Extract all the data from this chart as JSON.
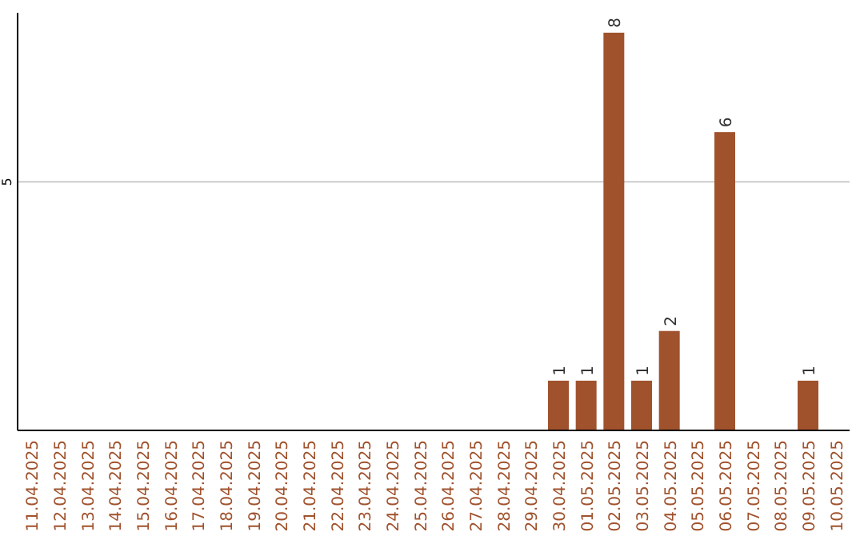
{
  "chart_data": {
    "type": "bar",
    "categories": [
      "11.04.2025",
      "12.04.2025",
      "13.04.2025",
      "14.04.2025",
      "15.04.2025",
      "16.04.2025",
      "17.04.2025",
      "18.04.2025",
      "19.04.2025",
      "20.04.2025",
      "21.04.2025",
      "22.04.2025",
      "23.04.2025",
      "24.04.2025",
      "25.04.2025",
      "26.04.2025",
      "27.04.2025",
      "28.04.2025",
      "29.04.2025",
      "30.04.2025",
      "01.05.2025",
      "02.05.2025",
      "03.05.2025",
      "04.05.2025",
      "05.05.2025",
      "06.05.2025",
      "07.05.2025",
      "08.05.2025",
      "09.05.2025",
      "10.05.2025"
    ],
    "values": [
      null,
      null,
      null,
      null,
      null,
      null,
      null,
      null,
      null,
      null,
      null,
      null,
      null,
      null,
      null,
      null,
      null,
      null,
      null,
      1,
      1,
      8,
      1,
      2,
      null,
      6,
      null,
      null,
      1,
      null
    ],
    "data_labels": true,
    "color": "#a0522d",
    "ylim": [
      0,
      8.4
    ],
    "yticks": [
      5
    ],
    "grid": "y"
  }
}
